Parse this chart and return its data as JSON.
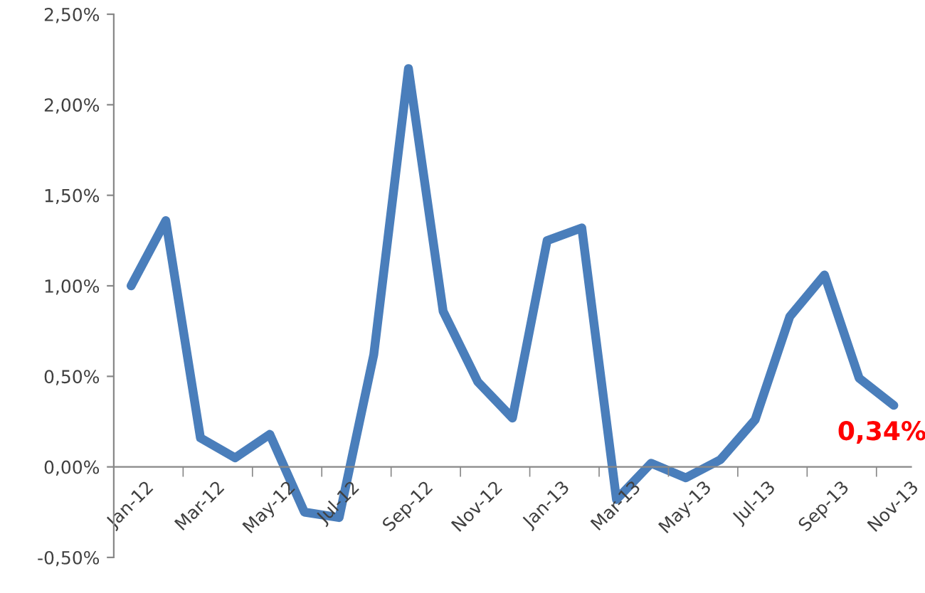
{
  "chart_data": {
    "type": "line",
    "categories": [
      "Jan-12",
      null,
      "Mar-12",
      null,
      "May-12",
      null,
      "Jul-12",
      null,
      "Sep-12",
      null,
      "Nov-12",
      null,
      "Jan-13",
      null,
      "Mar-13",
      null,
      "May-13",
      null,
      "Jul-13",
      null,
      "Sep-13",
      null,
      "Nov-13"
    ],
    "series": [
      {
        "color": "#4a7ebb",
        "values": [
          1.0,
          1.36,
          0.16,
          0.05,
          0.18,
          -0.25,
          -0.28,
          0.62,
          2.2,
          0.86,
          0.47,
          0.27,
          1.25,
          1.32,
          -0.18,
          0.02,
          -0.06,
          0.04,
          0.26,
          0.83,
          1.06,
          0.49,
          0.34
        ]
      }
    ],
    "ylim": [
      -0.5,
      2.5
    ],
    "yticks": [
      {
        "value": -0.5,
        "label": "-0,50%"
      },
      {
        "value": 0,
        "label": "0,00%"
      },
      {
        "value": 0.5,
        "label": "0,50%"
      },
      {
        "value": 1,
        "label": "1,00%"
      },
      {
        "value": 1.5,
        "label": "1,50%"
      },
      {
        "value": 2,
        "label": "2,00%"
      },
      {
        "value": 2.5,
        "label": "2,50%"
      }
    ],
    "annotations": [
      {
        "text": "0,34%",
        "x": "Nov-13",
        "y": 0.34
      }
    ],
    "grid": false,
    "marker": "none",
    "line_style": "solid"
  }
}
